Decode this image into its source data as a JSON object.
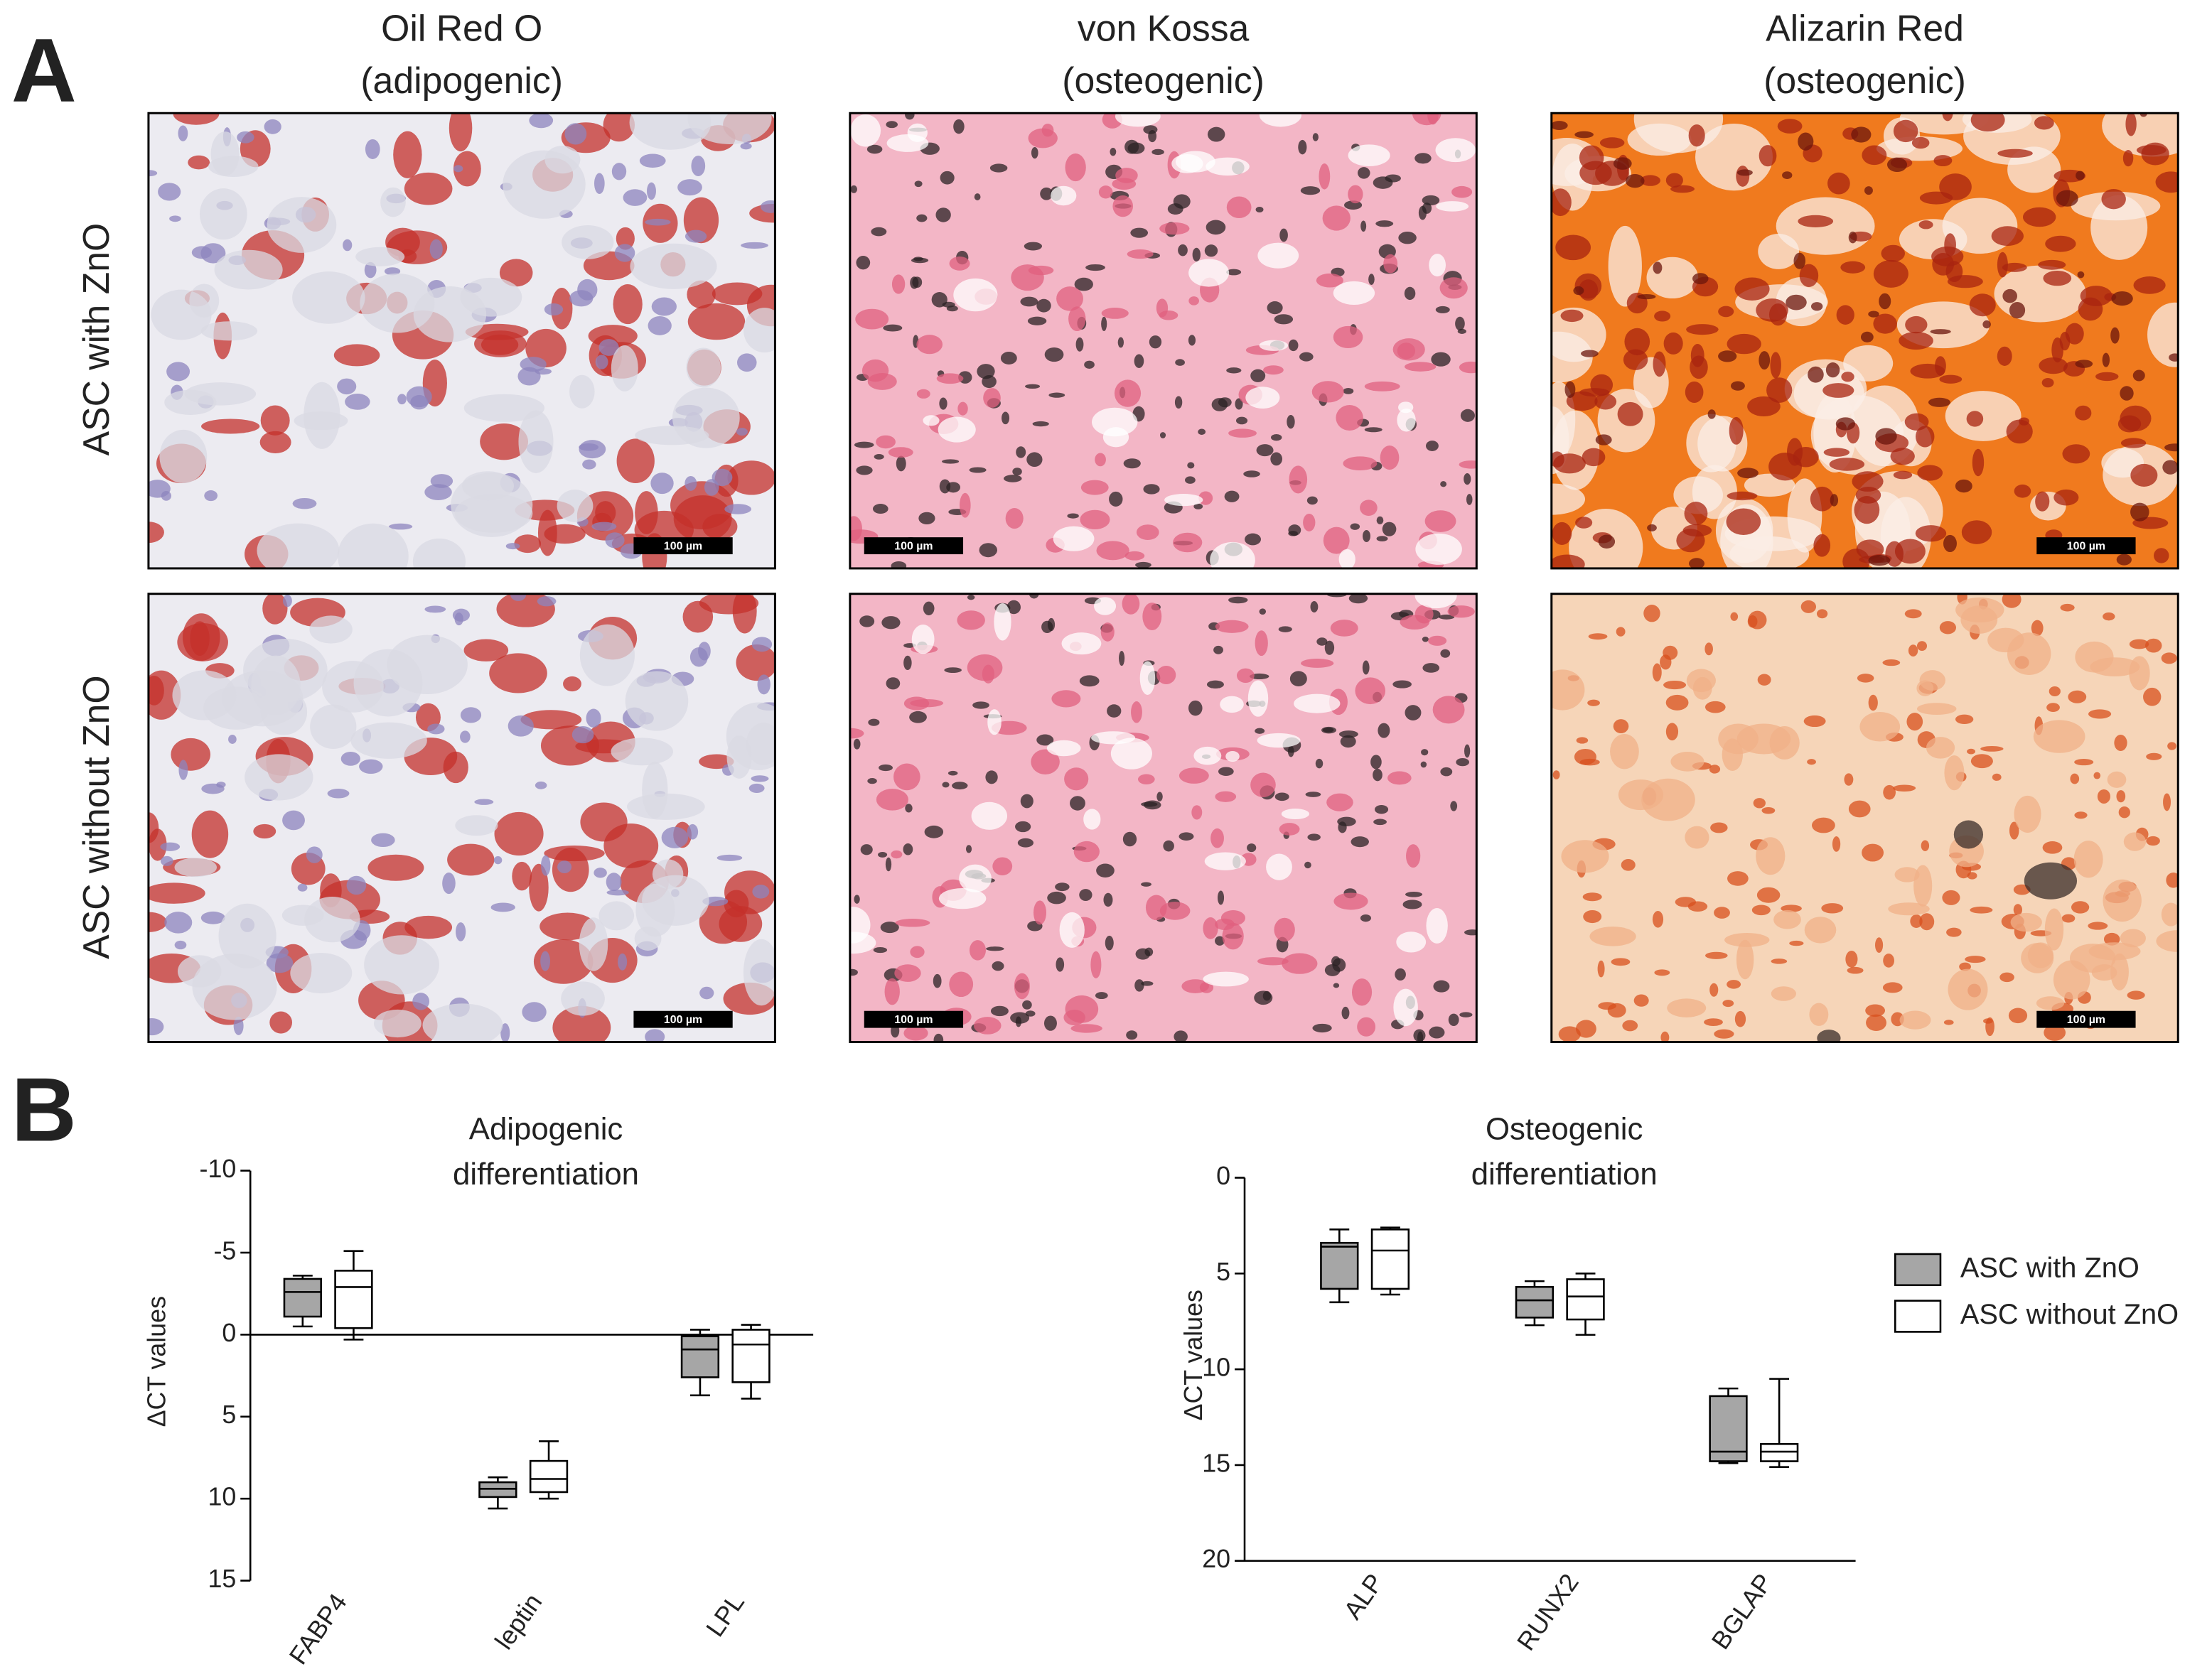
{
  "figure": {
    "panel_a": "A",
    "panel_b": "B",
    "columns": [
      [
        "Oil Red O",
        "(adipogenic)"
      ],
      [
        "von Kossa",
        "(osteogenic)"
      ],
      [
        "Alizarin Red",
        "(osteogenic)"
      ]
    ],
    "rows": [
      "ASC with ZnO",
      "ASC without ZnO"
    ],
    "scale_bars": [
      [
        "100 µm",
        "100 µm",
        "100 µm"
      ],
      [
        "100 µm",
        "100 µm",
        "100 µm"
      ]
    ]
  },
  "chart_data": [
    {
      "type": "box",
      "title": [
        "Adipogenic",
        "differentiation"
      ],
      "y_label": "ΔCT values",
      "categories": [
        "FABP4",
        "leptin",
        "LPL"
      ],
      "ylim": [
        -10,
        15
      ],
      "y_inverted": true,
      "yticks": [
        -10,
        -5,
        0,
        5,
        10,
        15
      ],
      "zero_line": true,
      "series": [
        {
          "color": "#a6a6a6",
          "values": [
            {
              "min": -3.6,
              "q1": -3.4,
              "median": -2.6,
              "q3": -1.1,
              "max": -0.5
            },
            {
              "min": 8.7,
              "q1": 9.0,
              "median": 9.4,
              "q3": 9.9,
              "max": 10.6
            },
            {
              "min": -0.3,
              "q1": 0.1,
              "median": 0.9,
              "q3": 2.6,
              "max": 3.7
            }
          ]
        },
        {
          "color": "#ffffff",
          "values": [
            {
              "min": -5.1,
              "q1": -3.9,
              "median": -2.9,
              "q3": -0.4,
              "max": 0.3
            },
            {
              "min": 6.5,
              "q1": 7.7,
              "median": 8.8,
              "q3": 9.6,
              "max": 10.0
            },
            {
              "min": -0.6,
              "q1": -0.3,
              "median": 0.6,
              "q3": 2.9,
              "max": 3.9
            }
          ]
        }
      ]
    },
    {
      "type": "box",
      "title": [
        "Osteogenic",
        "differentiation"
      ],
      "y_label": "ΔCT values",
      "categories": [
        "ALP",
        "RUNX2",
        "BGLAP"
      ],
      "ylim": [
        0,
        20
      ],
      "y_inverted": true,
      "yticks": [
        0,
        5,
        10,
        15,
        20
      ],
      "x_axis": true,
      "legend": "right",
      "series": [
        {
          "name": "ASC with ZnO",
          "color": "#a6a6a6",
          "values": [
            {
              "min": 2.7,
              "q1": 3.4,
              "median": 3.6,
              "q3": 5.8,
              "max": 6.5
            },
            {
              "min": 5.4,
              "q1": 5.7,
              "median": 6.4,
              "q3": 7.3,
              "max": 7.7
            },
            {
              "min": 11.0,
              "q1": 11.4,
              "median": 14.3,
              "q3": 14.8,
              "max": 14.9
            }
          ]
        },
        {
          "name": "ASC without ZnO",
          "color": "#ffffff",
          "values": [
            {
              "min": 2.6,
              "q1": 2.7,
              "median": 3.8,
              "q3": 5.8,
              "max": 6.1
            },
            {
              "min": 5.0,
              "q1": 5.3,
              "median": 6.2,
              "q3": 7.4,
              "max": 8.2
            },
            {
              "min": 10.5,
              "q1": 13.9,
              "median": 14.3,
              "q3": 14.8,
              "max": 15.1
            }
          ]
        }
      ]
    }
  ]
}
